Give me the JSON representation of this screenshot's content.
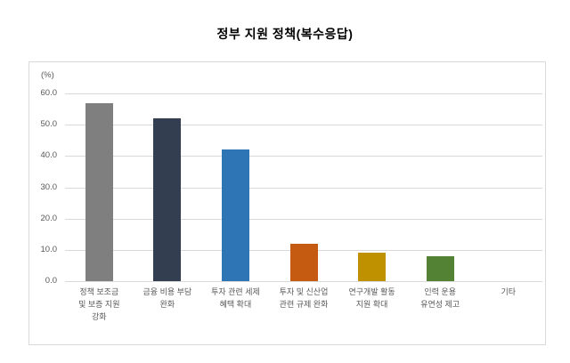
{
  "title": "정부 지원 정책(복수응답)",
  "chart": {
    "unit_label": "(%)"
  },
  "chart_data": {
    "type": "bar",
    "title": "정부 지원 정책(복수응답)",
    "categories": [
      "정책 보조금 및 보증 지원 강화",
      "금융 비용 부담 완화",
      "투자 관련 세제 혜택 확대",
      "투자 및 신산업 관련 규제 완화",
      "연구개발 활동 지원 확대",
      "인력 운용 유연성 제고",
      "기타"
    ],
    "tick_label_lines": [
      [
        "정책 보조금",
        "및 보증 지원",
        "강화"
      ],
      [
        "금융 비용 부담",
        "완화"
      ],
      [
        "투자 관련 세제",
        "혜택 확대"
      ],
      [
        "투자 및 신산업",
        "관련 규제 완화"
      ],
      [
        "연구개발 활동",
        "지원 확대"
      ],
      [
        "인력 운용",
        "유연성 제고"
      ],
      [
        "기타"
      ]
    ],
    "values": [
      57.0,
      52.0,
      42.0,
      12.0,
      9.0,
      8.0,
      0.0
    ],
    "colors": [
      "#7F7F7F",
      "#333F50",
      "#2E75B6",
      "#C55A11",
      "#BF9000",
      "#548235",
      null
    ],
    "xlabel": "",
    "ylabel": "(%)",
    "ylim": [
      0,
      60
    ],
    "y_tick_labels": [
      "60.0",
      "50.0",
      "40.0",
      "30.0",
      "20.0",
      "10.0",
      "0.0"
    ],
    "grid": true,
    "gridline_color": "#D9D9D9",
    "legend": false,
    "legend_position": "none"
  }
}
